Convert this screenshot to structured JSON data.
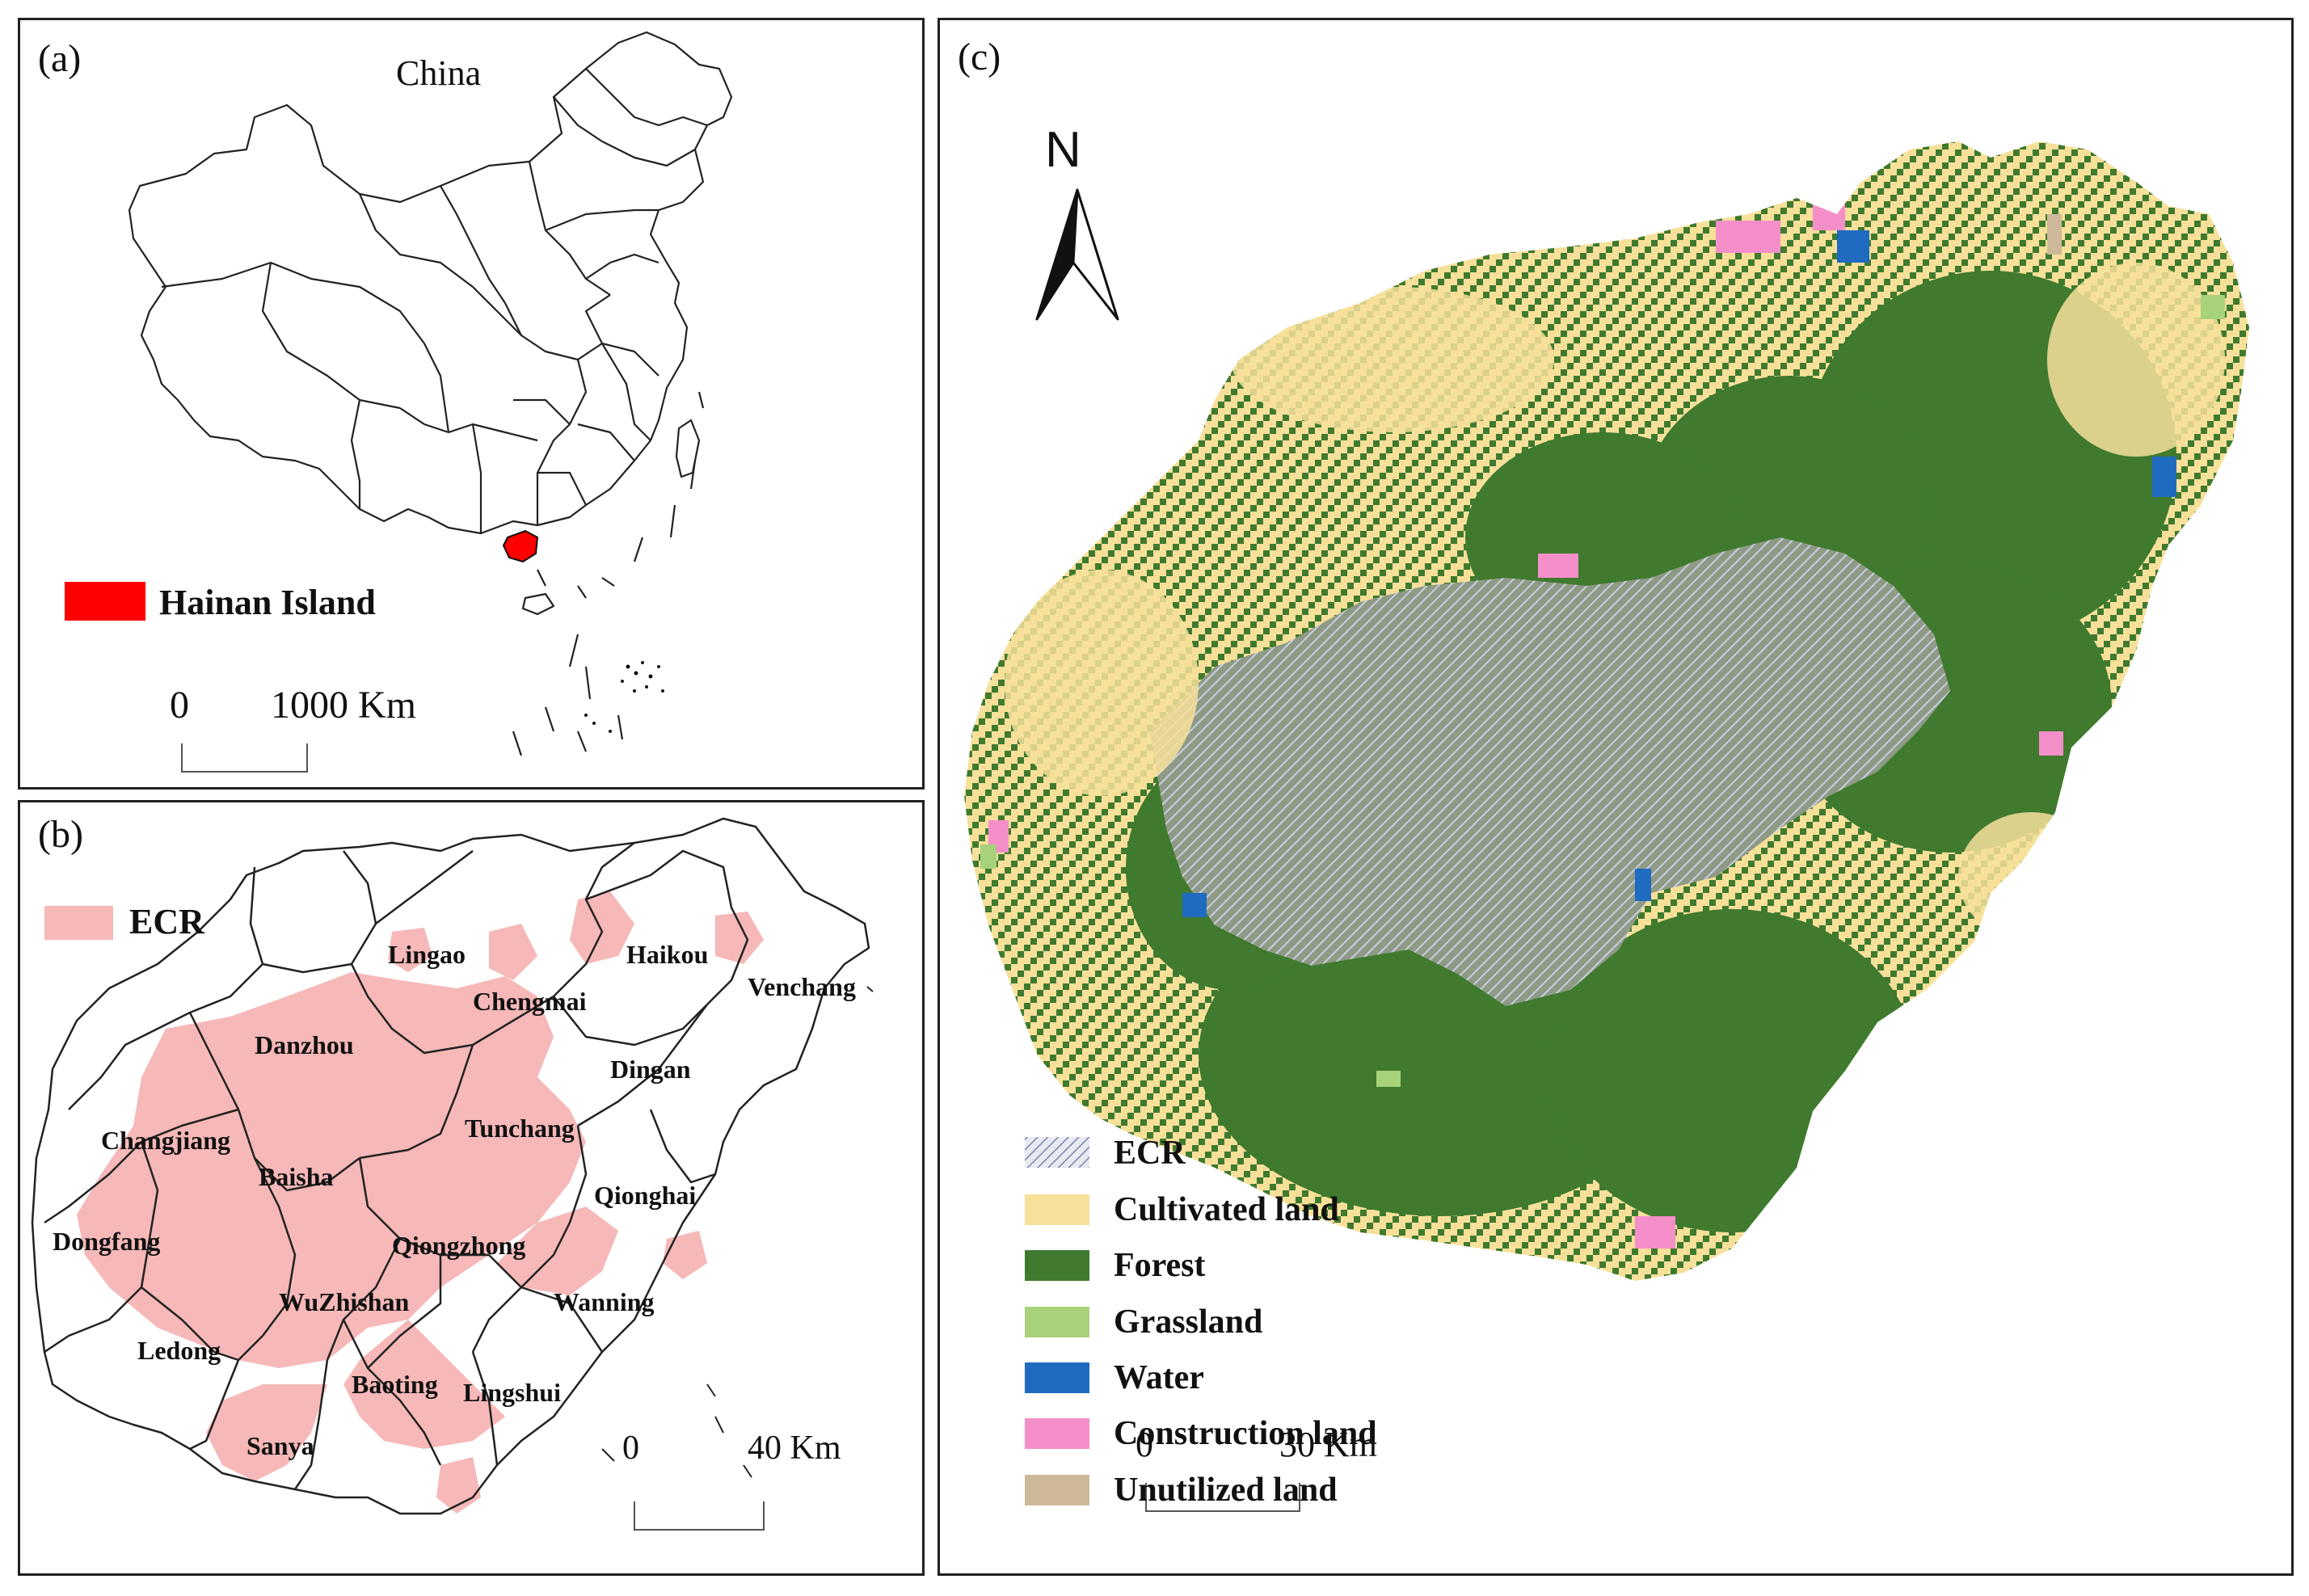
{
  "panel_a": {
    "label": "(a)",
    "country_label": "China",
    "legend_label": "Hainan Island",
    "legend_color": "#ff0000",
    "scale_zero": "0",
    "scale_end": "1000 Km"
  },
  "panel_b": {
    "label": "(b)",
    "legend_label": "ECR",
    "legend_color": "#f6b8b8",
    "counties": [
      "Lingao",
      "Haikou",
      "Venchang",
      "Chengmai",
      "Danzhou",
      "Dingan",
      "Tunchang",
      "Changjiang",
      "Baisha",
      "Qionghai",
      "Dongfang",
      "Qiongzhong",
      "WuZhishan",
      "Wanning",
      "Ledong",
      "Baoting",
      "Lingshui",
      "Sanya"
    ],
    "scale_zero": "0",
    "scale_end": "40 Km"
  },
  "panel_c": {
    "label": "(c)",
    "north_label": "N",
    "legend": [
      {
        "label": "ECR",
        "color": "#9aa3c4"
      },
      {
        "label": "Cultivated land",
        "color": "#f7e09a"
      },
      {
        "label": "Forest",
        "color": "#3f7a2e"
      },
      {
        "label": "Grassland",
        "color": "#a8d27a"
      },
      {
        "label": "Water",
        "color": "#1f6bc0"
      },
      {
        "label": "Construction land",
        "color": "#f58fc9"
      },
      {
        "label": "Unutilized land",
        "color": "#cdb89a"
      }
    ],
    "scale_zero": "0",
    "scale_end": "30 Km"
  }
}
